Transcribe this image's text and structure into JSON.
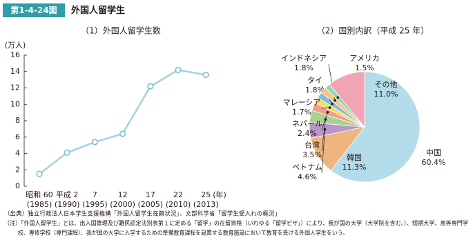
{
  "header": {
    "label": "第1-4-24図",
    "title": "外国人留学生"
  },
  "chart_data": [
    {
      "type": "line",
      "title": "（1）外国人留学生数",
      "y_label": "(万人)",
      "x_label": "(年)",
      "categories": [
        "昭和 60",
        "平成 2",
        "7",
        "12",
        "17",
        "22",
        "25"
      ],
      "category_sublabels": [
        "(1985)",
        "(1990)",
        "(1995)",
        "(2000)",
        "(2005)",
        "(2010)",
        "(2013)"
      ],
      "values": [
        1.5,
        4.1,
        5.4,
        6.4,
        12.2,
        14.2,
        13.6
      ],
      "color": "#9fd3e0",
      "ylim": [
        0,
        16
      ],
      "yticks": [
        0,
        2,
        4,
        6,
        8,
        10,
        12,
        14,
        16
      ],
      "grid": false
    },
    {
      "type": "pie",
      "title": "（2）国別内訳（平成 25 年）",
      "categories": [
        "中国",
        "韓国",
        "ベトナム",
        "台湾",
        "ネパール",
        "マレーシア",
        "タイ",
        "インドネシア",
        "アメリカ",
        "その他"
      ],
      "values": [
        60.4,
        11.3,
        4.6,
        3.5,
        2.4,
        1.7,
        1.8,
        1.8,
        1.5,
        11.0
      ],
      "value_labels": [
        "60.4%",
        "11.3%",
        "4.6%",
        "3.5%",
        "2.4%",
        "1.7%",
        "1.8%",
        "1.8%",
        "1.5%",
        "11.0%"
      ],
      "colors": [
        "#b3dcea",
        "#efb57f",
        "#b995c9",
        "#a9d191",
        "#f1a08e",
        "#f4e15a",
        "#84b9e3",
        "#f6c578",
        "#93d3b5",
        "#f1a5b3"
      ]
    }
  ],
  "notes": [
    "（出典）独立行政法人日本学生支援機構「外国人留学生在籍状況」、文部科学省「留学生受入れの概況」",
    "（注）「外国人留学生」とは、出入国管理及び難民認定法別表第１に定める「留学」の在留資格（いわゆる「留学ビザ」）により、我が国の大学（大学院を含む。）、短期大学、高等専門学",
    "校、専修学校（専門課程）、我が国の大学に入学するための準備教育課程を設置する教育施設において教育を受ける外国人学生をいう。"
  ]
}
